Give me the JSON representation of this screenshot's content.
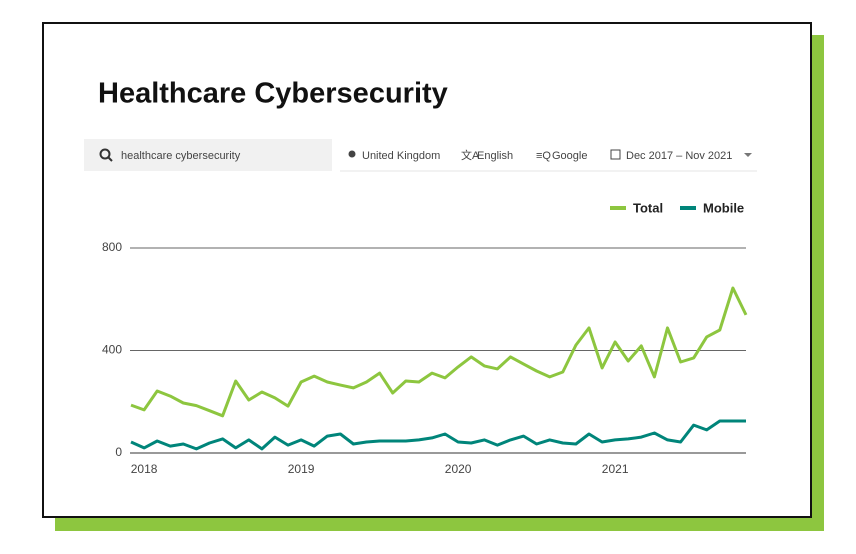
{
  "header": {
    "title": "Healthcare Cybersecurity"
  },
  "filters": {
    "query": "healthcare cybersecurity",
    "location": "United Kingdom",
    "language": "English",
    "engine": "Google",
    "date_range": "Dec 2017 – Nov 2021"
  },
  "chart_data": {
    "type": "line",
    "categories": [
      null,
      "2018",
      null,
      null,
      null,
      null,
      null,
      null,
      null,
      null,
      null,
      null,
      null,
      "2019",
      null,
      null,
      null,
      null,
      null,
      null,
      null,
      null,
      null,
      null,
      null,
      "2020",
      null,
      null,
      null,
      null,
      null,
      null,
      null,
      null,
      null,
      null,
      null,
      "2021",
      null,
      null,
      null,
      null,
      null,
      null,
      null,
      null,
      null,
      null
    ],
    "series": [
      {
        "name": "Total",
        "color": "#8dc63f",
        "values": [
          187,
          168,
          242,
          222,
          195,
          185,
          165,
          145,
          281,
          207,
          238,
          215,
          183,
          277,
          300,
          277,
          265,
          254,
          277,
          312,
          234,
          281,
          277,
          312,
          293,
          336,
          375,
          340,
          328,
          375,
          347,
          320,
          297,
          316,
          421,
          488,
          332,
          433,
          359,
          418,
          297,
          488,
          355,
          371,
          453,
          480,
          644,
          539
        ]
      },
      {
        "name": "Mobile",
        "color": "#00857a",
        "values": [
          43,
          20,
          47,
          27,
          35,
          16,
          39,
          55,
          20,
          51,
          16,
          62,
          31,
          51,
          27,
          66,
          74,
          35,
          43,
          47,
          47,
          47,
          51,
          59,
          74,
          43,
          39,
          51,
          31,
          51,
          66,
          35,
          51,
          39,
          35,
          74,
          43,
          51,
          55,
          62,
          78,
          51,
          43,
          109,
          90,
          125,
          125,
          125
        ]
      }
    ],
    "ylim": [
      0,
      800
    ],
    "yticks": [
      0,
      400,
      800
    ],
    "grid": true,
    "legend": "top-right"
  }
}
